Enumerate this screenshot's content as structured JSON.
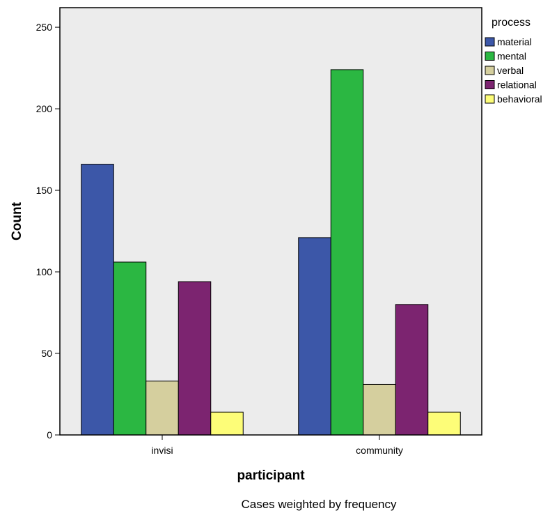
{
  "chart_data": {
    "type": "bar",
    "categories": [
      "invisi",
      "community"
    ],
    "series": [
      {
        "name": "material",
        "values": [
          166,
          121
        ],
        "color": "#3c57a8"
      },
      {
        "name": "mental",
        "values": [
          106,
          224
        ],
        "color": "#2bb742"
      },
      {
        "name": "verbal",
        "values": [
          33,
          31
        ],
        "color": "#d5cf9e"
      },
      {
        "name": "relational",
        "values": [
          94,
          80
        ],
        "color": "#7c2470"
      },
      {
        "name": "behavioral",
        "values": [
          14,
          14
        ],
        "color": "#fdfd78"
      }
    ],
    "xlabel": "participant",
    "ylabel": "Count",
    "ylim": [
      0,
      262
    ],
    "yticks": [
      0,
      50,
      100,
      150,
      200,
      250
    ],
    "legend_title": "process",
    "legend_position": "top-right",
    "plot_background": "#ececec",
    "grid": false
  },
  "footnote": "Cases weighted by frequency"
}
